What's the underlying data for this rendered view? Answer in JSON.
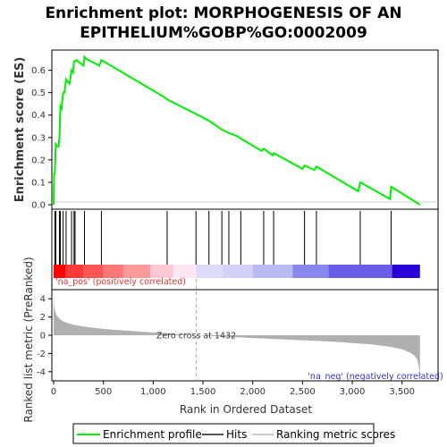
{
  "chart_data": [
    {
      "type": "line",
      "title_line1": "Enrichment plot: MORPHOGENESIS OF AN",
      "title_line2": "EPITHELIUM%GOBP%GO:0002009",
      "ylabel": "Enrichment score (ES)",
      "ylim": [
        -0.02,
        0.69
      ],
      "xlim": [
        0,
        3700
      ],
      "y_ticks": [
        "0.0",
        "0.1",
        "0.2",
        "0.3",
        "0.4",
        "0.5",
        "0.6"
      ],
      "line_color": "#00ee00",
      "series": [
        {
          "x": [
            0,
            5,
            12,
            22,
            35,
            50,
            58,
            68,
            80,
            95,
            110,
            125,
            140,
            160,
            180,
            195,
            205,
            215,
            228,
            300,
            310,
            330,
            460,
            480,
            500,
            1130,
            1140,
            1430,
            1560,
            1690,
            1760,
            1850,
            1880,
            2090,
            2110,
            2200,
            2210,
            2500,
            2520,
            2620,
            2640,
            3060,
            3080,
            3380,
            3390,
            3680
          ],
          "y": [
            0.0,
            0.14,
            0.14,
            0.27,
            0.26,
            0.26,
            0.3,
            0.44,
            0.43,
            0.5,
            0.5,
            0.56,
            0.55,
            0.54,
            0.6,
            0.59,
            0.64,
            0.64,
            0.645,
            0.62,
            0.66,
            0.65,
            0.62,
            0.645,
            0.64,
            0.475,
            0.47,
            0.405,
            0.375,
            0.335,
            0.32,
            0.305,
            0.295,
            0.24,
            0.25,
            0.22,
            0.23,
            0.16,
            0.175,
            0.155,
            0.17,
            0.06,
            0.1,
            0.025,
            0.08,
            0.0
          ]
        }
      ]
    },
    {
      "type": "hits",
      "positions": [
        12,
        22,
        58,
        68,
        95,
        125,
        180,
        205,
        215,
        310,
        480,
        1140,
        1430,
        1560,
        1690,
        1760,
        1880,
        2110,
        2210,
        2520,
        2640,
        3080,
        3390
      ],
      "color_bands": [
        {
          "from": 0,
          "to": 120,
          "color": "#ff0000"
        },
        {
          "from": 120,
          "to": 300,
          "color": "#ff3a3a"
        },
        {
          "from": 300,
          "to": 500,
          "color": "#ff5555"
        },
        {
          "from": 500,
          "to": 700,
          "color": "#ff7777"
        },
        {
          "from": 700,
          "to": 970,
          "color": "#ff9a9a"
        },
        {
          "from": 970,
          "to": 1200,
          "color": "#ffc8d2"
        },
        {
          "from": 1200,
          "to": 1432,
          "color": "#ffe6f5"
        },
        {
          "from": 1432,
          "to": 1700,
          "color": "#dcdcfa"
        },
        {
          "from": 1700,
          "to": 2000,
          "color": "#d2d2f8"
        },
        {
          "from": 2000,
          "to": 2400,
          "color": "#babaf2"
        },
        {
          "from": 2400,
          "to": 2760,
          "color": "#8888ec"
        },
        {
          "from": 2760,
          "to": 3400,
          "color": "#6a5ee6"
        },
        {
          "from": 3400,
          "to": 3680,
          "color": "#2a00d8"
        }
      ]
    },
    {
      "type": "area",
      "ylabel": "Ranked list metric (PreRanked)",
      "xlabel": "Rank in Ordered Dataset",
      "ylim": [
        -5,
        5
      ],
      "xlim": [
        0,
        3700
      ],
      "y_ticks": [
        "-4",
        "-2",
        "0",
        "2",
        "4"
      ],
      "x_ticks": [
        "0",
        "500",
        "1,000",
        "1,500",
        "2,000",
        "2,500",
        "3,000",
        "3,500"
      ],
      "zero_cross": 1432,
      "zero_cross_label": "Zero cross at 1432",
      "pos_label": "'na_pos' (positively correlated)",
      "neg_label": "'na_neg' (negatively correlated)",
      "fill_color": "#b0b0b0",
      "metric": {
        "x": [
          0,
          5,
          15,
          30,
          60,
          100,
          150,
          200,
          300,
          400,
          500,
          600,
          800,
          1000,
          1200,
          1432,
          1600,
          1800,
          2000,
          2200,
          2400,
          2600,
          2800,
          3000,
          3200,
          3400,
          3500,
          3580,
          3620,
          3650,
          3670,
          3680
        ],
        "y": [
          4.5,
          3.2,
          2.6,
          2.2,
          1.8,
          1.5,
          1.3,
          1.15,
          0.95,
          0.82,
          0.7,
          0.6,
          0.45,
          0.3,
          0.15,
          0.0,
          -0.1,
          -0.2,
          -0.3,
          -0.4,
          -0.5,
          -0.6,
          -0.7,
          -0.85,
          -1.0,
          -1.3,
          -1.55,
          -1.9,
          -2.2,
          -2.6,
          -3.5,
          -4.6
        ]
      }
    }
  ],
  "legend": {
    "items": [
      {
        "label": "Enrichment profile",
        "color": "#00ee00"
      },
      {
        "label": "Hits",
        "color": "#555555"
      },
      {
        "label": "Ranking metric scores",
        "color": "#cccccc"
      }
    ]
  }
}
